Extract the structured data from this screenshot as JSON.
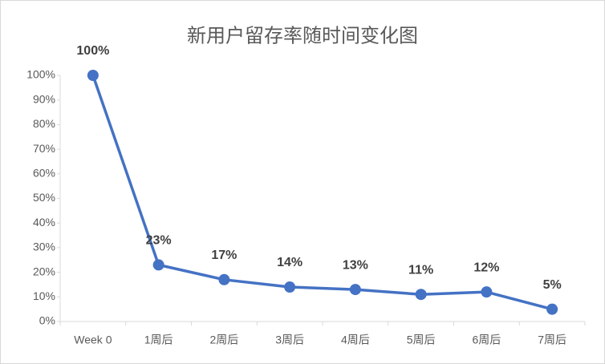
{
  "chart_data": {
    "type": "line",
    "title": "新用户留存率随时间变化图",
    "categories": [
      "Week 0",
      "1周后",
      "2周后",
      "3周后",
      "4周后",
      "5周后",
      "6周后",
      "7周后"
    ],
    "values": [
      100,
      23,
      17,
      14,
      13,
      11,
      12,
      5
    ],
    "value_labels": [
      "100%",
      "23%",
      "17%",
      "14%",
      "13%",
      "11%",
      "12%",
      "5%"
    ],
    "color": "#4472c4",
    "ylim": [
      0,
      100
    ],
    "yticks": [
      {
        "value": 0,
        "label": "0%"
      },
      {
        "value": 10,
        "label": "10%"
      },
      {
        "value": 20,
        "label": "20%"
      },
      {
        "value": 30,
        "label": "30%"
      },
      {
        "value": 40,
        "label": "40%"
      },
      {
        "value": 50,
        "label": "50%"
      },
      {
        "value": 60,
        "label": "60%"
      },
      {
        "value": 70,
        "label": "70%"
      },
      {
        "value": 80,
        "label": "80%"
      },
      {
        "value": 90,
        "label": "90%"
      },
      {
        "value": 100,
        "label": "100%"
      }
    ],
    "grid": false
  }
}
